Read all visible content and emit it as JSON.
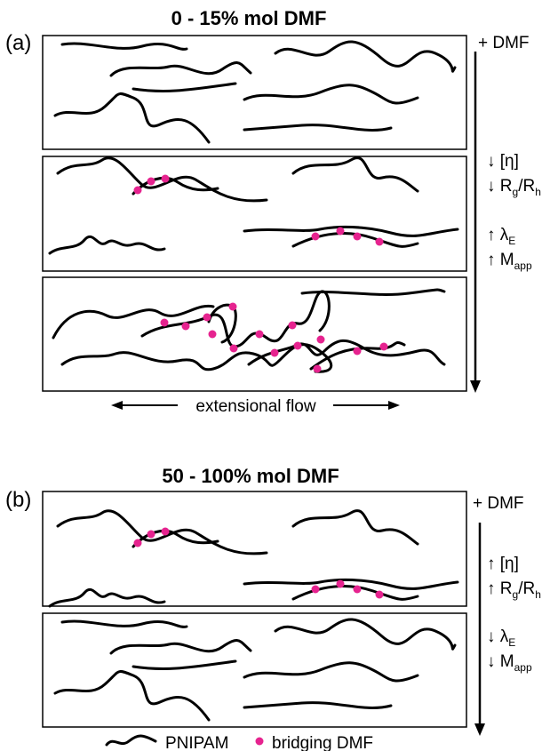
{
  "panel_a": {
    "label": "(a)",
    "title": "0 - 15% mol DMF",
    "direction": "+ DMF",
    "annotations": [
      [
        "↓ [η]"
      ],
      [
        "↓ R",
        "g",
        "/R",
        "h"
      ],
      [
        "↑ λ",
        "E"
      ],
      [
        "↑ M",
        "app"
      ]
    ],
    "flow": "extensional flow"
  },
  "panel_b": {
    "label": "(b)",
    "title": "50 - 100% mol DMF",
    "direction": "+ DMF",
    "annotations": [
      [
        "↑ [η]"
      ],
      [
        "↑ R",
        "g",
        "/R",
        "h"
      ],
      [
        "↓ λ",
        "E"
      ],
      [
        "↓ M",
        "app"
      ]
    ]
  },
  "legend": {
    "chain": "PNIPAM",
    "dot": "bridging DMF"
  }
}
